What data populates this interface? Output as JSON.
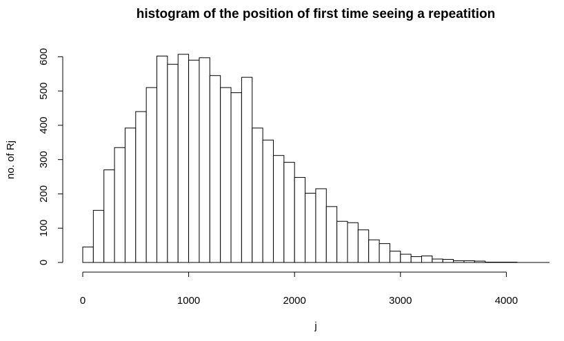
{
  "chart_data": {
    "type": "histogram",
    "title": "histogram of the position of first time seeing a repeatition",
    "xlabel": "j",
    "ylabel": "no. of Rj",
    "bin_width": 100,
    "bin_starts": [
      0,
      100,
      200,
      300,
      400,
      500,
      600,
      700,
      800,
      900,
      1000,
      1100,
      1200,
      1300,
      1400,
      1500,
      1600,
      1700,
      1800,
      1900,
      2000,
      2100,
      2200,
      2300,
      2400,
      2500,
      2600,
      2700,
      2800,
      2900,
      3000,
      3100,
      3200,
      3300,
      3400,
      3500,
      3600,
      3700,
      3800,
      3900,
      4000,
      4100,
      4200,
      4300
    ],
    "values": [
      45,
      152,
      270,
      335,
      392,
      440,
      510,
      602,
      578,
      607,
      590,
      597,
      545,
      510,
      495,
      540,
      392,
      357,
      312,
      292,
      248,
      202,
      215,
      163,
      120,
      116,
      95,
      66,
      55,
      33,
      24,
      17,
      19,
      10,
      9,
      5,
      5,
      4,
      1,
      1,
      1,
      0,
      0,
      0
    ],
    "x_ticks": [
      "0",
      "1000",
      "2000",
      "3000",
      "4000"
    ],
    "y_ticks": [
      "0",
      "100",
      "200",
      "300",
      "400",
      "500",
      "600"
    ],
    "xlim": [
      0,
      4400
    ],
    "ylim": [
      0,
      600
    ],
    "grid": false,
    "legend": "none",
    "bar_fill": "#ffffff",
    "bar_stroke": "#000000"
  }
}
